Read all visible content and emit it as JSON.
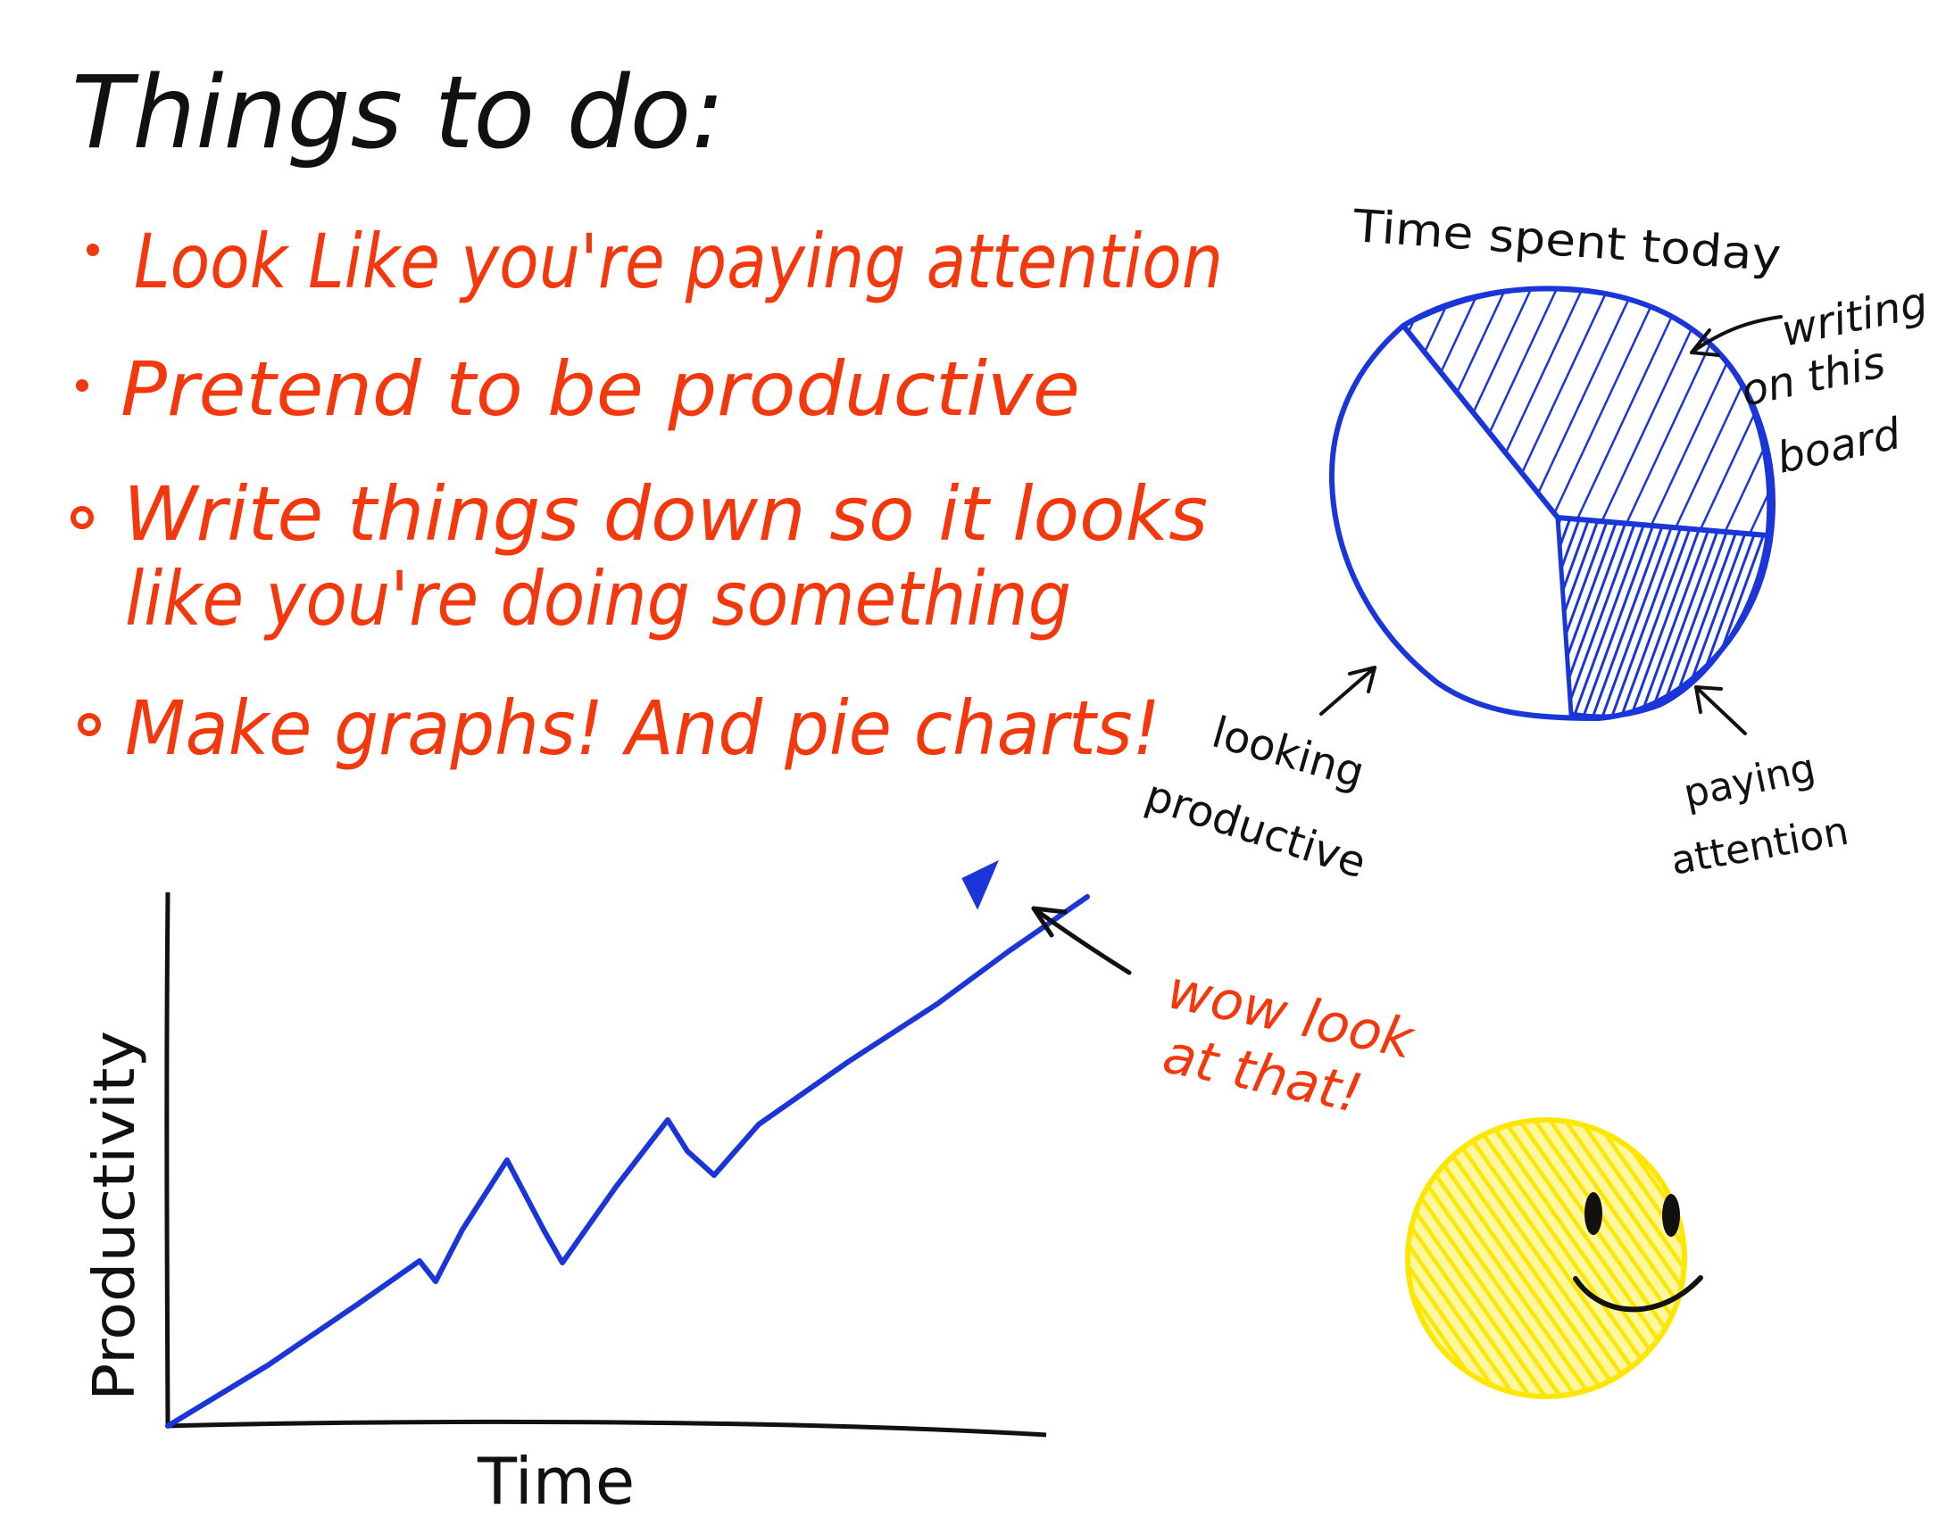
{
  "todo": {
    "title": "Things to do:",
    "items": [
      {
        "lines": [
          "Look Like you're paying attention"
        ]
      },
      {
        "lines": [
          "Pretend to be productive"
        ]
      },
      {
        "lines": [
          "Write things down so it looks",
          "like you're doing something"
        ]
      },
      {
        "lines": [
          "Make graphs! And pie charts!"
        ]
      }
    ]
  },
  "pie": {
    "title": "Time spent today",
    "labels": {
      "writing": [
        "writing",
        "on this",
        "board"
      ],
      "looking": [
        "looking",
        "productive"
      ],
      "paying": [
        "paying",
        "attention"
      ]
    }
  },
  "line_chart": {
    "xlabel": "Time",
    "ylabel": "Productivity",
    "note": [
      "wow look",
      "at that!"
    ]
  },
  "smiley": {
    "icon": "smiley-face-icon"
  },
  "colors": {
    "ink_black": "#111111",
    "ink_red": "#f2380c",
    "ink_blue": "#1a35d8",
    "smiley_yellow": "#ffe600"
  }
}
